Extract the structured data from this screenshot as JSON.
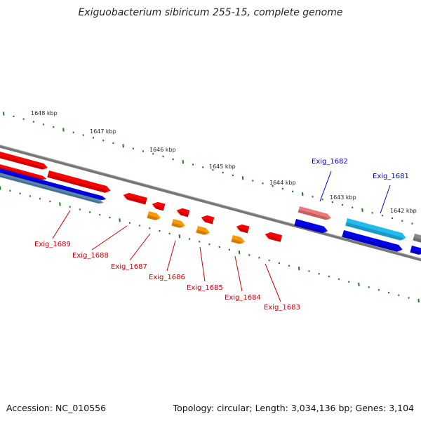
{
  "title": "Exiguobacterium sibiricum 255-15, complete genome",
  "footer": {
    "accession": "Accession: NC_010556",
    "summary": "Topology: circular; Length: 3,034,136 bp; Genes: 3,104"
  },
  "colors": {
    "red": "#ff0000",
    "orange": "#ff9900",
    "pink": "#ee7777",
    "blue": "#0000ee",
    "cyan": "#22bbee",
    "steel": "#5588aa",
    "gray": "#888888",
    "backbone": "#888888",
    "tick": "#227722",
    "label_red": "#cc0000",
    "label_blue": "#0000cc"
  },
  "ruler": [
    {
      "label": "1648 kbp"
    },
    {
      "label": "1647 kbp"
    },
    {
      "label": "1646 kbp"
    },
    {
      "label": "1645 kbp"
    },
    {
      "label": "1644 kbp"
    },
    {
      "label": "1643 kbp"
    },
    {
      "label": "1642 kbp"
    }
  ],
  "genes": [
    {
      "name": "Exig_1689",
      "color": "red"
    },
    {
      "name": "Exig_1688",
      "color": "red"
    },
    {
      "name": "Exig_1687",
      "color": "red"
    },
    {
      "name": "Exig_1686",
      "color": "red"
    },
    {
      "name": "Exig_1685",
      "color": "red"
    },
    {
      "name": "Exig_1684",
      "color": "red"
    },
    {
      "name": "Exig_1683",
      "color": "red"
    },
    {
      "name": "Exig_1682",
      "color": "blue"
    },
    {
      "name": "Exig_1681",
      "color": "blue"
    }
  ]
}
